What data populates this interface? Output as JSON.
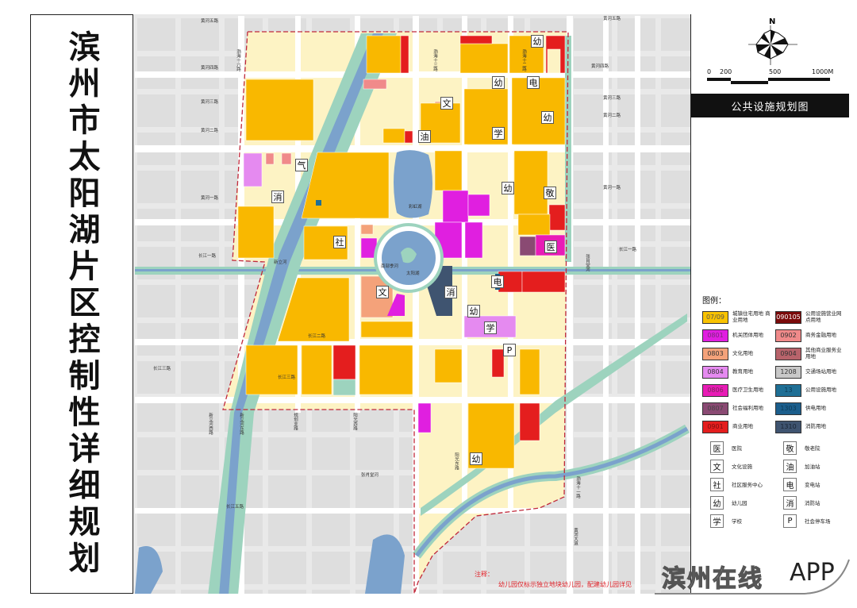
{
  "title": "滨州市太阳湖片区控制性详细规划",
  "plan_title": "公共设施规划图",
  "compass": {
    "north_label": "N"
  },
  "scale_bar": {
    "labels": [
      "0",
      "200",
      "500",
      "1000M"
    ]
  },
  "legend": {
    "title": "图例：",
    "land_use": [
      {
        "code": "07/09",
        "label": "城镇住宅用地 商业用地",
        "color": "#F9C300",
        "text_color": "#555555"
      },
      {
        "code": "090105",
        "label": "公用设施营业网点用地",
        "color": "#7A0A0A",
        "text_color": "#FFFFFF"
      },
      {
        "code": "0801",
        "label": "机关团体用地",
        "color": "#E01FE0",
        "text_color": "#7a2a7a"
      },
      {
        "code": "0902",
        "label": "商务金融用地",
        "color": "#F08A8A",
        "text_color": "#333333"
      },
      {
        "code": "0803",
        "label": "文化用地",
        "color": "#F4A27A",
        "text_color": "#333333"
      },
      {
        "code": "0904",
        "label": "其他商业服务业用地",
        "color": "#B8636B",
        "text_color": "#333333"
      },
      {
        "code": "0804",
        "label": "教育用地",
        "color": "#E58AF0",
        "text_color": "#333333"
      },
      {
        "code": "1208",
        "label": "交通场站用地",
        "color": "#C8C8C8",
        "text_color": "#333333"
      },
      {
        "code": "0806",
        "label": "医疗卫生用地",
        "color": "#E81CB6",
        "text_color": "#7a2a5a"
      },
      {
        "code": "13",
        "label": "公用设施用地",
        "color": "#1F6F95",
        "text_color": "#0c3a55"
      },
      {
        "code": "0807",
        "label": "社会福利用地",
        "color": "#8A4A73",
        "text_color": "#444444"
      },
      {
        "code": "1303",
        "label": "供电用地",
        "color": "#1B5E8C",
        "text_color": "#0c3a55"
      },
      {
        "code": "0901",
        "label": "商业用地",
        "color": "#E41E1E",
        "text_color": "#7a1010"
      },
      {
        "code": "1310",
        "label": "消防用地",
        "color": "#3F5470",
        "text_color": "#1a2535"
      }
    ],
    "symbols": [
      {
        "char": "医",
        "label": "医院"
      },
      {
        "char": "敬",
        "label": "敬老院"
      },
      {
        "char": "文",
        "label": "文化设施"
      },
      {
        "char": "油",
        "label": "加油站"
      },
      {
        "char": "社",
        "label": "社区服务中心"
      },
      {
        "char": "电",
        "label": "变电站"
      },
      {
        "char": "幼",
        "label": "幼儿园"
      },
      {
        "char": "消",
        "label": "消防站"
      },
      {
        "char": "学",
        "label": "学校"
      },
      {
        "char": "P",
        "label": "社会停车场"
      }
    ]
  },
  "map": {
    "colors": {
      "residential": "#F9B800",
      "mixed_pale": "#FDF3C4",
      "green": "#9DD3BE",
      "water": "#7BA2CC",
      "background": "#E9E9E9",
      "boundary": "#C0283A"
    },
    "markers": [
      "幼",
      "幼",
      "电",
      "文",
      "幼",
      "学",
      "油",
      "气",
      "消",
      "幼",
      "敬",
      "社",
      "医",
      "电",
      "文",
      "消",
      "幼",
      "学",
      "P",
      "幼"
    ],
    "road_labels": [
      "黄河五路",
      "黄河五路",
      "黄河四路",
      "黄河四路",
      "黄河三路",
      "黄河三路",
      "黄河二路",
      "黄河二路",
      "黄河一路",
      "黄河一路",
      "长江一路",
      "长江一路",
      "长江二路",
      "长江三路",
      "长江三路",
      "长江五路",
      "渤海十六路",
      "渤海十三路",
      "渤海十二路",
      "渤海十一路",
      "黄河大道",
      "南部季河",
      "太阳湖",
      "彩虹湖",
      "新立河",
      "张肖堂河",
      "阳光东路",
      "阳光西路",
      "规划支路",
      "新立河东路",
      "新立河西路",
      "张肖堂河"
    ]
  },
  "note": {
    "title": "注释：",
    "text": "幼儿园仅标示独立地块幼儿园，配建幼儿园详见"
  },
  "watermark": {
    "text": "滨州在线",
    "app": "APP"
  }
}
